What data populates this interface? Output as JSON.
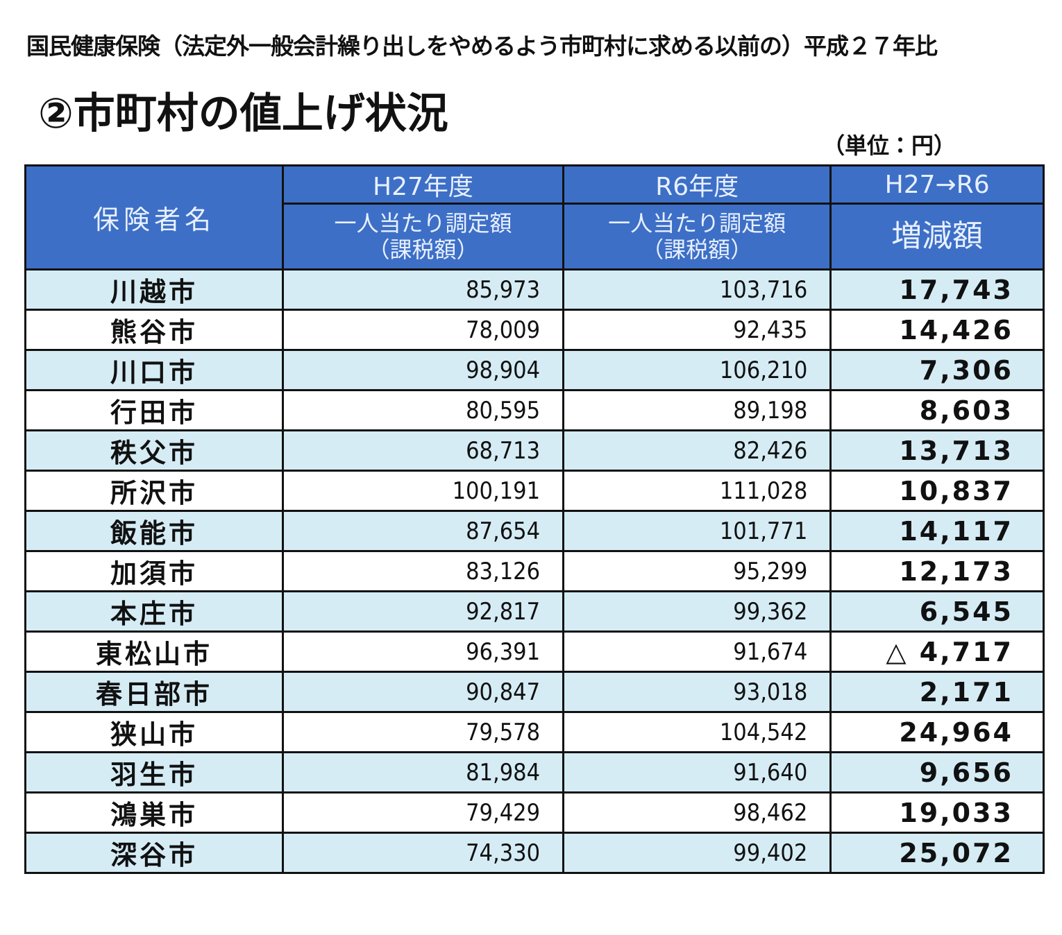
{
  "header": {
    "title": "国民健康保険（法定外一般会計繰り出しをやめるよう市町村に求める以前の）平成２７年比",
    "subtitle": "②市町村の値上げ状況",
    "unit": "（単位：円）"
  },
  "table": {
    "headers": {
      "name": "保険者名",
      "h27": {
        "top": "H27年度",
        "line1": "一人当たり調定額",
        "line2": "（課税額）"
      },
      "r6": {
        "top": "R6年度",
        "line1": "一人当たり調定額",
        "line2": "（課税額）"
      },
      "diff": {
        "top": "H27→R6",
        "line1": "増減額"
      }
    },
    "rows": [
      [
        "川越市",
        "85,973",
        "103,716",
        "17,743"
      ],
      [
        "熊谷市",
        "78,009",
        "92,435",
        "14,426"
      ],
      [
        "川口市",
        "98,904",
        "106,210",
        "7,306"
      ],
      [
        "行田市",
        "80,595",
        "89,198",
        "8,603"
      ],
      [
        "秩父市",
        "68,713",
        "82,426",
        "13,713"
      ],
      [
        "所沢市",
        "100,191",
        "111,028",
        "10,837"
      ],
      [
        "飯能市",
        "87,654",
        "101,771",
        "14,117"
      ],
      [
        "加須市",
        "83,126",
        "95,299",
        "12,173"
      ],
      [
        "本庄市",
        "92,817",
        "99,362",
        "6,545"
      ],
      [
        "東松山市",
        "96,391",
        "91,674",
        "△ 4,717"
      ],
      [
        "春日部市",
        "90,847",
        "93,018",
        "2,171"
      ],
      [
        "狭山市",
        "79,578",
        "104,542",
        "24,964"
      ],
      [
        "羽生市",
        "81,984",
        "91,640",
        "9,656"
      ],
      [
        "鴻巣市",
        "79,429",
        "98,462",
        "19,033"
      ],
      [
        "深谷市",
        "74,330",
        "99,402",
        "25,072"
      ]
    ]
  }
}
